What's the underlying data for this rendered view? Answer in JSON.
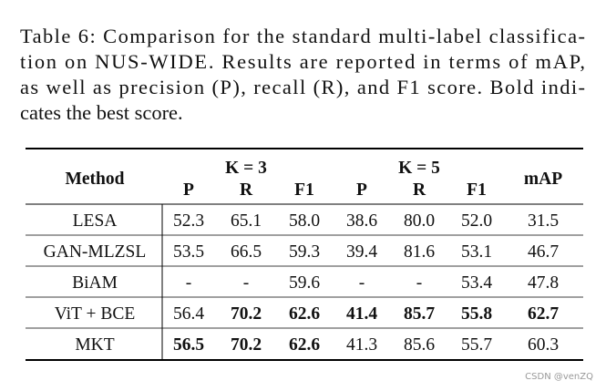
{
  "caption": {
    "lines": [
      "Table 6: Comparison for the standard multi-label classifica-",
      "tion on NUS-WIDE. Results are reported in terms of mAP,",
      "as well as precision (P), recall (R), and F1 score. Bold indi-",
      "cates the best score."
    ]
  },
  "table": {
    "header": {
      "method": "Method",
      "groups": [
        "K = 3",
        "K = 5"
      ],
      "subcolumns": [
        "P",
        "R",
        "F1",
        "P",
        "R",
        "F1"
      ],
      "last": "mAP"
    },
    "rows": [
      [
        {
          "text": "LESA"
        },
        {
          "text": "52.3"
        },
        {
          "text": "65.1"
        },
        {
          "text": "58.0"
        },
        {
          "text": "38.6"
        },
        {
          "text": "80.0"
        },
        {
          "text": "52.0"
        },
        {
          "text": "31.5"
        }
      ],
      [
        {
          "text": "GAN-MLZSL"
        },
        {
          "text": "53.5"
        },
        {
          "text": "66.5"
        },
        {
          "text": "59.3"
        },
        {
          "text": "39.4"
        },
        {
          "text": "81.6"
        },
        {
          "text": "53.1"
        },
        {
          "text": "46.7"
        }
      ],
      [
        {
          "text": "BiAM"
        },
        {
          "text": "-"
        },
        {
          "text": "-"
        },
        {
          "text": "59.6"
        },
        {
          "text": "-"
        },
        {
          "text": "-"
        },
        {
          "text": "53.4"
        },
        {
          "text": "47.8"
        }
      ],
      [
        {
          "text": "ViT + BCE"
        },
        {
          "text": "56.4"
        },
        {
          "text": "70.2",
          "bold": true
        },
        {
          "text": "62.6",
          "bold": true
        },
        {
          "text": "41.4",
          "bold": true
        },
        {
          "text": "85.7",
          "bold": true
        },
        {
          "text": "55.8",
          "bold": true
        },
        {
          "text": "62.7",
          "bold": true
        }
      ],
      [
        {
          "text": "MKT"
        },
        {
          "text": "56.5",
          "bold": true
        },
        {
          "text": "70.2",
          "bold": true
        },
        {
          "text": "62.6",
          "bold": true
        },
        {
          "text": "41.3"
        },
        {
          "text": "85.6"
        },
        {
          "text": "55.7"
        },
        {
          "text": "60.3"
        }
      ]
    ]
  },
  "watermark": "CSDN @venZQ"
}
